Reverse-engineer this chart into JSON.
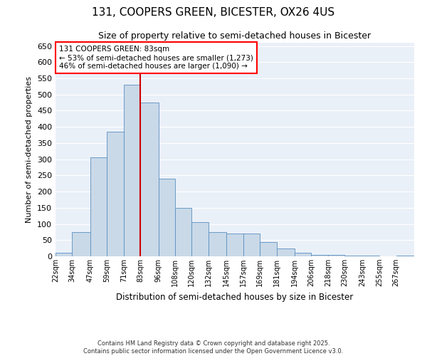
{
  "title1": "131, COOPERS GREEN, BICESTER, OX26 4US",
  "title2": "Size of property relative to semi-detached houses in Bicester",
  "xlabel": "Distribution of semi-detached houses by size in Bicester",
  "ylabel": "Number of semi-detached properties",
  "property_size": 83,
  "pct_smaller": 53,
  "pct_larger": 46,
  "count_smaller": 1273,
  "count_larger": 1090,
  "bin_labels": [
    "22sqm",
    "34sqm",
    "47sqm",
    "59sqm",
    "71sqm",
    "83sqm",
    "96sqm",
    "108sqm",
    "120sqm",
    "132sqm",
    "145sqm",
    "157sqm",
    "169sqm",
    "181sqm",
    "194sqm",
    "206sqm",
    "218sqm",
    "230sqm",
    "243sqm",
    "255sqm",
    "267sqm"
  ],
  "bin_edges": [
    22,
    34,
    47,
    59,
    71,
    83,
    96,
    108,
    120,
    132,
    145,
    157,
    169,
    181,
    194,
    206,
    218,
    230,
    243,
    255,
    267,
    280
  ],
  "bar_heights": [
    10,
    75,
    305,
    385,
    530,
    475,
    240,
    150,
    105,
    75,
    70,
    70,
    45,
    25,
    10,
    5,
    5,
    3,
    2,
    0,
    2
  ],
  "bar_color": "#c9d9e8",
  "bar_edgecolor": "#5a8fc0",
  "vline_color": "#cc0000",
  "bg_color": "#eaf0f8",
  "grid_color": "#ffffff",
  "footer_line1": "Contains HM Land Registry data © Crown copyright and database right 2025.",
  "footer_line2": "Contains public sector information licensed under the Open Government Licence v3.0.",
  "ylim": [
    0,
    660
  ],
  "yticks": [
    0,
    50,
    100,
    150,
    200,
    250,
    300,
    350,
    400,
    450,
    500,
    550,
    600,
    650
  ]
}
